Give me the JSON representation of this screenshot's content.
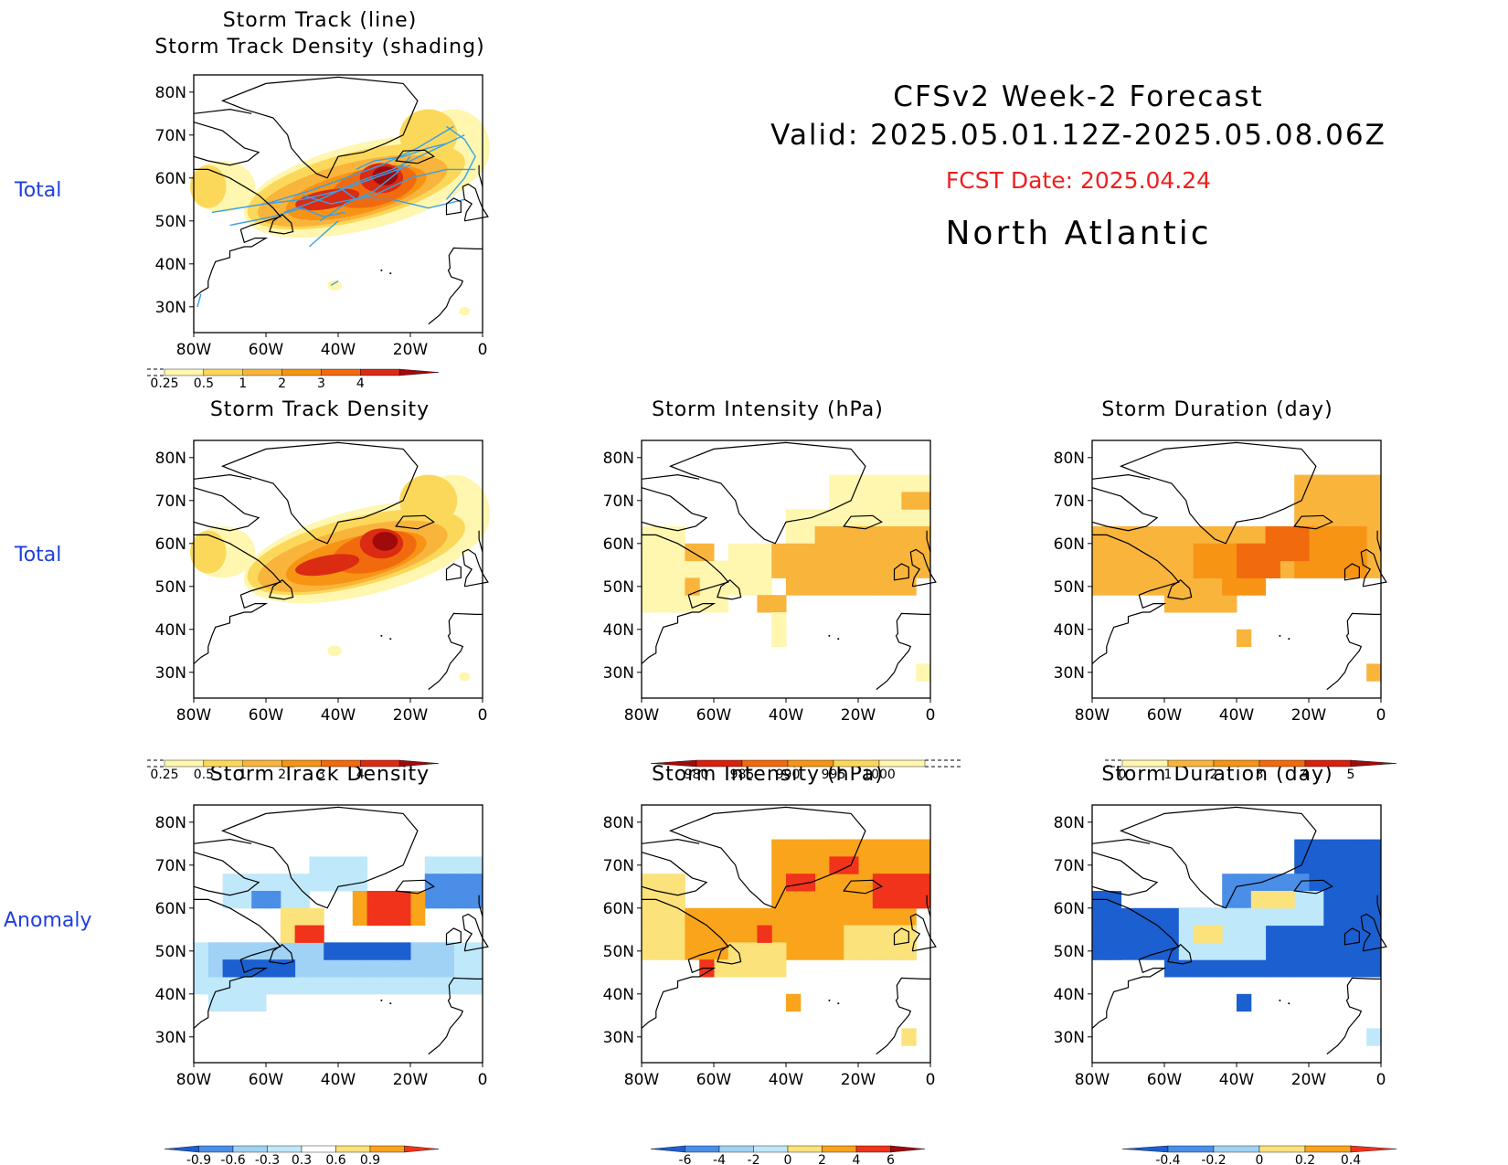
{
  "header": {
    "title_line1": "CFSv2  Week-2  Forecast",
    "title_line2": "Valid:  2025.05.01.12Z-2025.05.08.06Z",
    "fcst_date": "FCST Date: 2025.04.24",
    "region": "North  Atlantic"
  },
  "row_labels": {
    "row1": "Total",
    "row2": "Total",
    "row3": "Anomaly"
  },
  "axes": {
    "lat_ticks": [
      "80N",
      "70N",
      "60N",
      "50N",
      "40N",
      "30N"
    ],
    "lon_ticks": [
      "80W",
      "60W",
      "40W",
      "20W",
      "0"
    ]
  },
  "panels": [
    {
      "id": "track",
      "title1": "Storm  Track  (line)",
      "title2": "Storm  Track  Density  (shading)",
      "colorbar": {
        "ticks": [
          "0.25",
          "0.5",
          "1",
          "2",
          "3",
          "4"
        ],
        "colors": [
          "#fff6b0",
          "#fcd85a",
          "#f9b43c",
          "#f79414",
          "#f26a0e",
          "#db2b12",
          "#a10a0a"
        ],
        "dashed_left": true
      }
    },
    {
      "id": "density-total",
      "title1": "Storm  Track  Density",
      "colorbar": {
        "ticks": [
          "0.25",
          "0.5",
          "1",
          "2",
          "3",
          "4"
        ],
        "colors": [
          "#fff6b0",
          "#fcd85a",
          "#f9b43c",
          "#f79414",
          "#f26a0e",
          "#db2b12",
          "#a10a0a"
        ],
        "dashed_left": true
      }
    },
    {
      "id": "intensity-total",
      "title1": "Storm  Intensity  (hPa)",
      "colorbar": {
        "ticks": [
          "980",
          "985",
          "990",
          "995",
          "1000"
        ],
        "colors": [
          "#a10a0a",
          "#d8200e",
          "#f26a0e",
          "#f79414",
          "#fcd85a",
          "#fff6b0"
        ],
        "dashed_right": true
      }
    },
    {
      "id": "duration-total",
      "title1": "Storm  Duration  (day)",
      "colorbar": {
        "ticks": [
          "0",
          "1",
          "2",
          "3",
          "4",
          "5"
        ],
        "colors": [
          "#fff6b0",
          "#f9b43c",
          "#f79414",
          "#f26a0e",
          "#d8200e",
          "#a10a0a"
        ],
        "dashed_left": true
      }
    },
    {
      "id": "density-anom",
      "title1": "Storm  Track  Density",
      "colorbar": {
        "ticks": [
          "-0.9",
          "-0.6",
          "-0.3",
          "0.3",
          "0.6",
          "0.9"
        ],
        "colors": [
          "#1b5fd0",
          "#4a8ee8",
          "#9fd2f4",
          "#bfe8fb",
          "#ffffff",
          "#fbe27a",
          "#f9a41a",
          "#f0331a"
        ]
      }
    },
    {
      "id": "intensity-anom",
      "title1": "Storm  Intensity  (hPa)",
      "colorbar": {
        "ticks": [
          "-6",
          "-4",
          "-2",
          "0",
          "2",
          "4",
          "6"
        ],
        "colors": [
          "#1b5fd0",
          "#4a8ee8",
          "#9fd2f4",
          "#bfe8fb",
          "#fbe27a",
          "#f9a41a",
          "#f0331a",
          "#a10a0a"
        ]
      }
    },
    {
      "id": "duration-anom",
      "title1": "Storm  Duration  (day)",
      "colorbar": {
        "ticks": [
          "-0.4",
          "-0.2",
          "0",
          "0.2",
          "0.4"
        ],
        "colors": [
          "#1b5fd0",
          "#4a8ee8",
          "#9fd2f4",
          "#fbe27a",
          "#f9a41a",
          "#f0331a"
        ]
      }
    }
  ]
}
